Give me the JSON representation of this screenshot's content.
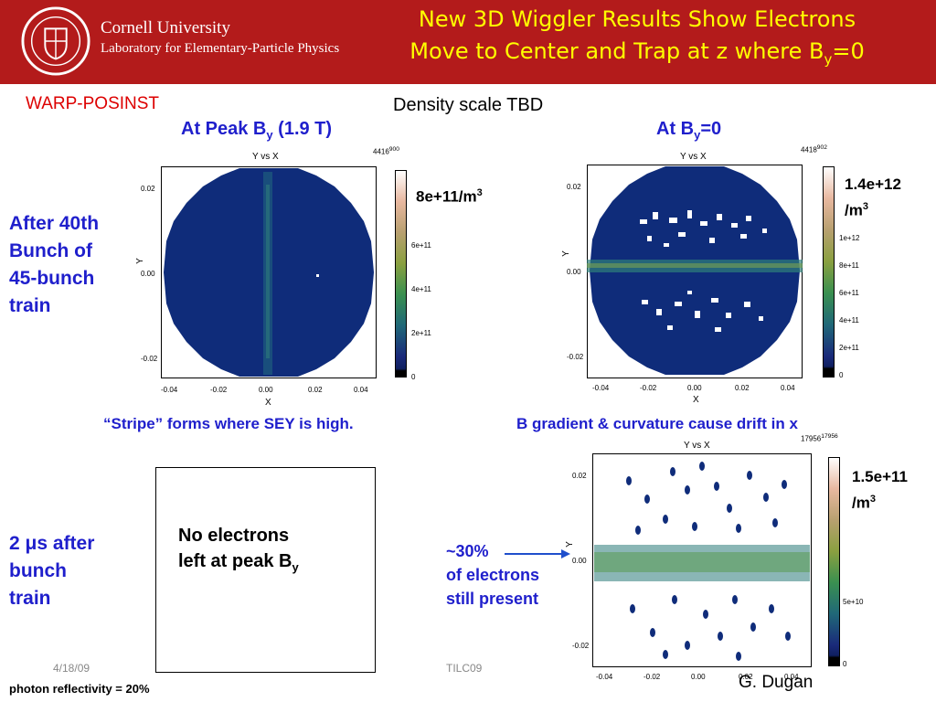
{
  "header": {
    "university": "Cornell University",
    "lab": "Laboratory for Elementary-Particle Physics",
    "title_line1": "New 3D Wiggler Results Show Electrons",
    "title_line2_pre": "Move to Center and Trap at z where B",
    "title_line2_sub": "y",
    "title_line2_post": "=0"
  },
  "code_label": "WARP-POSINST",
  "density_note": "Density scale TBD",
  "col_left": {
    "pre": "At Peak B",
    "sub": "y",
    "post": " (1.9 T)"
  },
  "col_right": {
    "pre": "At B",
    "sub": "y",
    "post": "=0"
  },
  "row1": {
    "l1": "After 40th",
    "l2": "Bunch of",
    "l3": "45-bunch",
    "l4": "train"
  },
  "row2": {
    "pre": "2 ",
    "mu": "μ",
    "post": "s after",
    "l2": "bunch",
    "l3": "train"
  },
  "plot1": {
    "title": "Y vs X",
    "entries": "4416",
    "max": "900",
    "xlabel": "X",
    "ylabel": "Y",
    "xticks": [
      "-0.04",
      "-0.02",
      "0.00",
      "0.02",
      "0.04"
    ],
    "yticks": [
      "0.02",
      "0.00",
      "-0.02"
    ],
    "cticks": [
      "6e+11",
      "4e+11",
      "2e+11",
      "0"
    ],
    "scale_pre": "8e+11/m",
    "scale_sup": "3"
  },
  "plot2": {
    "title": "Y vs X",
    "entries": "4418",
    "max": "902",
    "xlabel": "X",
    "ylabel": "Y",
    "xticks": [
      "-0.04",
      "-0.02",
      "0.00",
      "0.02",
      "0.04"
    ],
    "yticks": [
      "0.02",
      "0.00",
      "-0.02"
    ],
    "cticks": [
      "1e+12",
      "8e+11",
      "6e+11",
      "4e+11",
      "2e+11",
      "0"
    ],
    "scale_l1": "1.4e+12",
    "scale_l2": "/m",
    "scale_sup": "3"
  },
  "plot3": {
    "title": "Y vs X",
    "entries": "17956",
    "max": "17956",
    "ylabel": "Y",
    "xticks": [
      "-0.04",
      "-0.02",
      "0.00",
      "0.02",
      "0.04"
    ],
    "yticks": [
      "0.02",
      "0.00",
      "-0.02"
    ],
    "cticks": [
      "5e+10",
      "0"
    ],
    "scale_l1": "1.5e+11",
    "scale_l2": "/m",
    "scale_sup": "3"
  },
  "caption_left": "“Stripe” forms where SEY is high.",
  "caption_right": "B gradient & curvature cause drift in x",
  "no_electrons": {
    "l1": "No electrons",
    "l2_pre": "left at peak B",
    "l2_sub": "y"
  },
  "arrow_note": {
    "l1": "~30%",
    "l2": "of electrons",
    "l3": "still present"
  },
  "footer": {
    "date": "4/18/09",
    "conf": "TILC09",
    "author": "G. Dugan",
    "reflectivity": "photon reflectivity = 20%"
  }
}
